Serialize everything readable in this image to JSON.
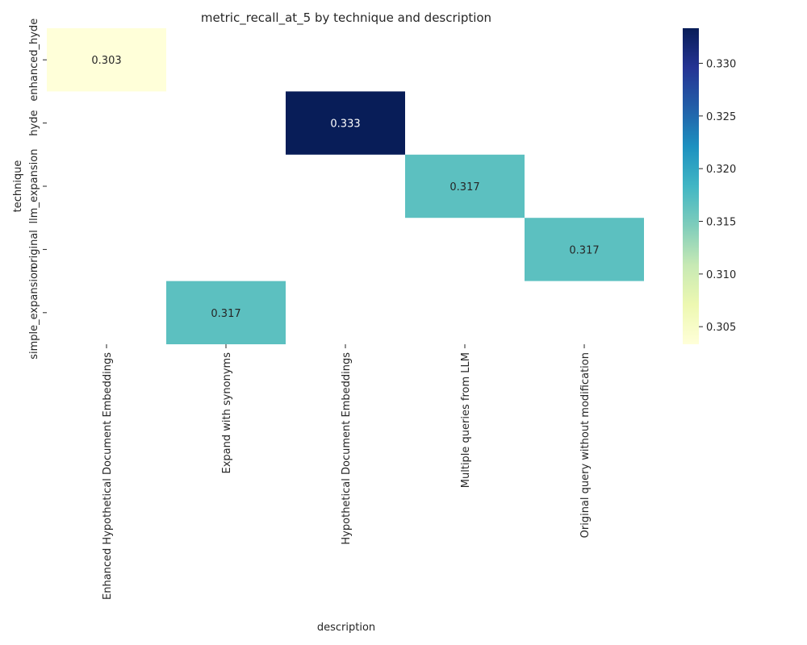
{
  "chart_data": {
    "type": "heatmap",
    "title": "metric_recall_at_5 by technique and description",
    "xlabel": "description",
    "ylabel": "technique",
    "x_categories": [
      "Enhanced Hypothetical Document Embeddings",
      "Expand with synonyms",
      "Hypothetical Document Embeddings",
      "Multiple queries from LLM",
      "Original query without modification"
    ],
    "y_categories": [
      "enhanced_hyde",
      "hyde",
      "llm_expansion",
      "original",
      "simple_expansion"
    ],
    "cells": [
      {
        "row": 0,
        "col": 0,
        "value": 0.30333,
        "label": "0.303"
      },
      {
        "row": 1,
        "col": 2,
        "value": 0.33333,
        "label": "0.333"
      },
      {
        "row": 2,
        "col": 3,
        "value": 0.31667,
        "label": "0.317"
      },
      {
        "row": 3,
        "col": 4,
        "value": 0.31667,
        "label": "0.317"
      },
      {
        "row": 4,
        "col": 1,
        "value": 0.31667,
        "label": "0.317"
      }
    ],
    "colorbar": {
      "colormap": "YlGnBu",
      "range": [
        0.30333,
        0.33333
      ],
      "ticks": [
        "0.305",
        "0.310",
        "0.315",
        "0.320",
        "0.325",
        "0.330"
      ],
      "tick_values": [
        0.305,
        0.31,
        0.315,
        0.32,
        0.325,
        0.33
      ]
    },
    "annotation_colors": {
      "light": "#ffffff",
      "dark": "#262626"
    }
  }
}
